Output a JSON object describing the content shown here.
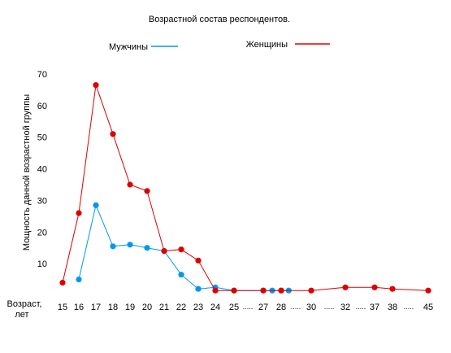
{
  "chart_data": {
    "type": "line",
    "title": "Возрастной состав респондентов.",
    "ylabel": "Мощность данной возрастной группы",
    "xlabel_lines": [
      "Возраст,",
      "лет"
    ],
    "ylim": [
      0,
      70
    ],
    "yticks": [
      "10",
      "20",
      "30",
      "40",
      "50",
      "60",
      "70"
    ],
    "xticks": [
      "15",
      "16",
      "17",
      "18",
      "19",
      "20",
      "21",
      "22",
      "23",
      "24",
      "25",
      "27",
      "28",
      "30",
      "32",
      "37",
      "38",
      "45"
    ],
    "gap_marker": ".....",
    "grid": false,
    "legend_placement": "top",
    "series": [
      {
        "name": "Мужчины",
        "color": "#0099ee",
        "points": [
          {
            "x": "16",
            "y": 5
          },
          {
            "x": "17",
            "y": 28.5
          },
          {
            "x": "18",
            "y": 15.5
          },
          {
            "x": "19",
            "y": 16
          },
          {
            "x": "20",
            "y": 15
          },
          {
            "x": "21",
            "y": 14
          },
          {
            "x": "22",
            "y": 6.5
          },
          {
            "x": "23",
            "y": 2
          },
          {
            "x": "24",
            "y": 2.5
          },
          {
            "x": "25",
            "y": 1.5
          },
          {
            "x": "27",
            "y": 1.5
          },
          {
            "x": "27.5",
            "y": 1.5
          },
          {
            "x": "28",
            "y": 1.5
          },
          {
            "x": "28.5",
            "y": 1.5
          }
        ]
      },
      {
        "name": "Женщины",
        "color": "#dd0000",
        "points": [
          {
            "x": "15",
            "y": 4
          },
          {
            "x": "16",
            "y": 26
          },
          {
            "x": "17",
            "y": 66.5
          },
          {
            "x": "18",
            "y": 51
          },
          {
            "x": "19",
            "y": 35
          },
          {
            "x": "20",
            "y": 33
          },
          {
            "x": "21",
            "y": 14
          },
          {
            "x": "22",
            "y": 14.5
          },
          {
            "x": "23",
            "y": 11
          },
          {
            "x": "24",
            "y": 1.5
          },
          {
            "x": "25",
            "y": 1.5
          },
          {
            "x": "27",
            "y": 1.5
          },
          {
            "x": "28",
            "y": 1.5
          },
          {
            "x": "30",
            "y": 1.5
          },
          {
            "x": "32",
            "y": 2.5
          },
          {
            "x": "37",
            "y": 2.5
          },
          {
            "x": "38",
            "y": 2
          },
          {
            "x": "45",
            "y": 1.5
          }
        ]
      }
    ]
  }
}
